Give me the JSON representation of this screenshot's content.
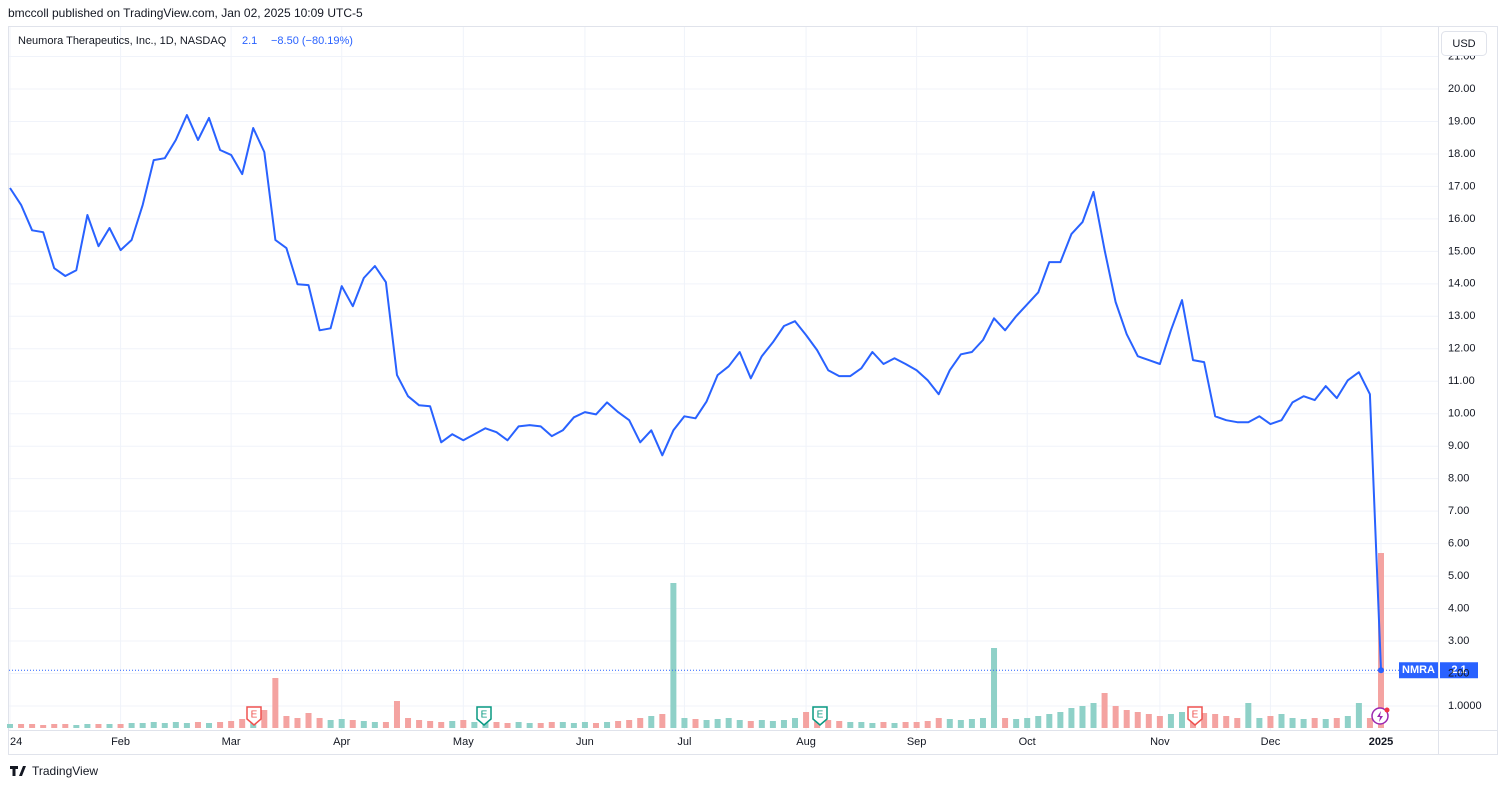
{
  "header": {
    "published": "bmccoll published on TradingView.com, Jan 02, 2025 10:09 UTC-5",
    "symbol": "Neumora Therapeutics, Inc., 1D, NASDAQ",
    "change": "−8.50 (−80.19%)",
    "currency": "USD",
    "event_label": "E",
    "brand": "TradingView"
  },
  "chart_data": {
    "type": "line",
    "categories": [
      "24",
      null,
      null,
      null,
      null,
      null,
      null,
      null,
      null,
      null,
      "Feb",
      null,
      null,
      null,
      null,
      null,
      null,
      null,
      null,
      null,
      "Mar",
      null,
      null,
      null,
      null,
      null,
      null,
      null,
      null,
      null,
      "Apr",
      null,
      null,
      null,
      null,
      null,
      null,
      null,
      null,
      null,
      null,
      "May",
      null,
      null,
      null,
      null,
      null,
      null,
      null,
      null,
      null,
      null,
      "Jun",
      null,
      null,
      null,
      null,
      null,
      null,
      null,
      null,
      "Jul",
      null,
      null,
      null,
      null,
      null,
      null,
      null,
      null,
      null,
      null,
      "Aug",
      null,
      null,
      null,
      null,
      null,
      null,
      null,
      null,
      null,
      "Sep",
      null,
      null,
      null,
      null,
      null,
      null,
      null,
      null,
      null,
      "Oct",
      null,
      null,
      null,
      null,
      null,
      null,
      null,
      null,
      null,
      null,
      null,
      "Nov",
      null,
      null,
      null,
      null,
      null,
      null,
      null,
      null,
      null,
      "Dec",
      null,
      null,
      null,
      null,
      null,
      null,
      null,
      null,
      null,
      "2025"
    ],
    "series": [
      {
        "name": "NMRA",
        "color": "#2962ff",
        "values": [
          16.95,
          16.43,
          15.65,
          15.59,
          14.48,
          14.24,
          14.42,
          16.12,
          15.16,
          15.72,
          15.04,
          15.35,
          16.43,
          17.81,
          17.87,
          18.43,
          19.2,
          18.43,
          19.11,
          18.12,
          17.97,
          17.38,
          18.8,
          18.06,
          15.35,
          15.1,
          13.99,
          13.96,
          12.57,
          12.63,
          13.93,
          13.31,
          14.18,
          14.55,
          14.05,
          11.19,
          10.54,
          10.26,
          10.23,
          9.12,
          9.37,
          9.18,
          9.37,
          9.55,
          9.43,
          9.18,
          9.61,
          9.65,
          9.61,
          9.31,
          9.49,
          9.89,
          10.05,
          9.98,
          10.35,
          10.05,
          9.8,
          9.12,
          9.49,
          8.72,
          9.49,
          9.92,
          9.86,
          10.38,
          11.19,
          11.46,
          11.9,
          11.09,
          11.77,
          12.2,
          12.7,
          12.85,
          12.42,
          11.96,
          11.34,
          11.16,
          11.16,
          11.4,
          11.9,
          11.53,
          11.71,
          11.53,
          11.34,
          11.03,
          10.6,
          11.34,
          11.83,
          11.9,
          12.27,
          12.94,
          12.57,
          13.0,
          13.37,
          13.74,
          14.67,
          14.67,
          15.53,
          15.9,
          16.83,
          15.04,
          13.44,
          12.45,
          11.77,
          11.65,
          11.53,
          12.57,
          13.5,
          11.65,
          11.59,
          9.92,
          9.8,
          9.74,
          9.74,
          9.92,
          9.68,
          9.8,
          10.35,
          10.54,
          10.42,
          10.85,
          10.48,
          11.03,
          11.28,
          10.6,
          2.1
        ]
      }
    ],
    "volume": {
      "up_color": "#8fd1c8",
      "down_color": "#f4a3a1",
      "values": [
        4,
        4,
        4,
        3,
        4,
        4,
        3,
        4,
        4,
        4,
        4,
        5,
        5,
        6,
        5,
        6,
        5,
        6,
        5,
        6,
        7,
        9,
        10,
        18,
        50,
        12,
        10,
        15,
        10,
        8,
        9,
        8,
        7,
        6,
        6,
        27,
        10,
        8,
        7,
        6,
        7,
        8,
        6,
        7,
        6,
        5,
        6,
        5,
        5,
        6,
        6,
        5,
        6,
        5,
        6,
        7,
        8,
        10,
        12,
        14,
        145,
        10,
        9,
        8,
        9,
        10,
        8,
        7,
        8,
        7,
        8,
        10,
        16,
        10,
        8,
        7,
        6,
        6,
        5,
        6,
        5,
        6,
        6,
        7,
        10,
        9,
        8,
        9,
        10,
        80,
        10,
        9,
        10,
        12,
        14,
        16,
        20,
        22,
        25,
        35,
        22,
        18,
        16,
        14,
        12,
        14,
        16,
        18,
        15,
        14,
        12,
        10,
        25,
        10,
        12,
        14,
        10,
        9,
        10,
        9,
        10,
        12,
        25,
        10,
        175
      ]
    },
    "ylim": [
      0.26,
      21.94
    ],
    "yticks": [
      {
        "value": 1,
        "label": "1.0000"
      },
      {
        "value": 2,
        "label": "2.00"
      },
      {
        "value": 3,
        "label": "3.00"
      },
      {
        "value": 4,
        "label": "4.00"
      },
      {
        "value": 5,
        "label": "5.00"
      },
      {
        "value": 6,
        "label": "6.00"
      },
      {
        "value": 7,
        "label": "7.00"
      },
      {
        "value": 8,
        "label": "8.00"
      },
      {
        "value": 9,
        "label": "9.00"
      },
      {
        "value": 10,
        "label": "10.00"
      },
      {
        "value": 11,
        "label": "11.00"
      },
      {
        "value": 12,
        "label": "12.00"
      },
      {
        "value": 13,
        "label": "13.00"
      },
      {
        "value": 14,
        "label": "14.00"
      },
      {
        "value": 15,
        "label": "15.00"
      },
      {
        "value": 16,
        "label": "16.00"
      },
      {
        "value": 17,
        "label": "17.00"
      },
      {
        "value": 18,
        "label": "18.00"
      },
      {
        "value": 19,
        "label": "19.00"
      },
      {
        "value": 20,
        "label": "20.00"
      },
      {
        "value": 21,
        "label": "21.00"
      }
    ],
    "grid": true
  }
}
